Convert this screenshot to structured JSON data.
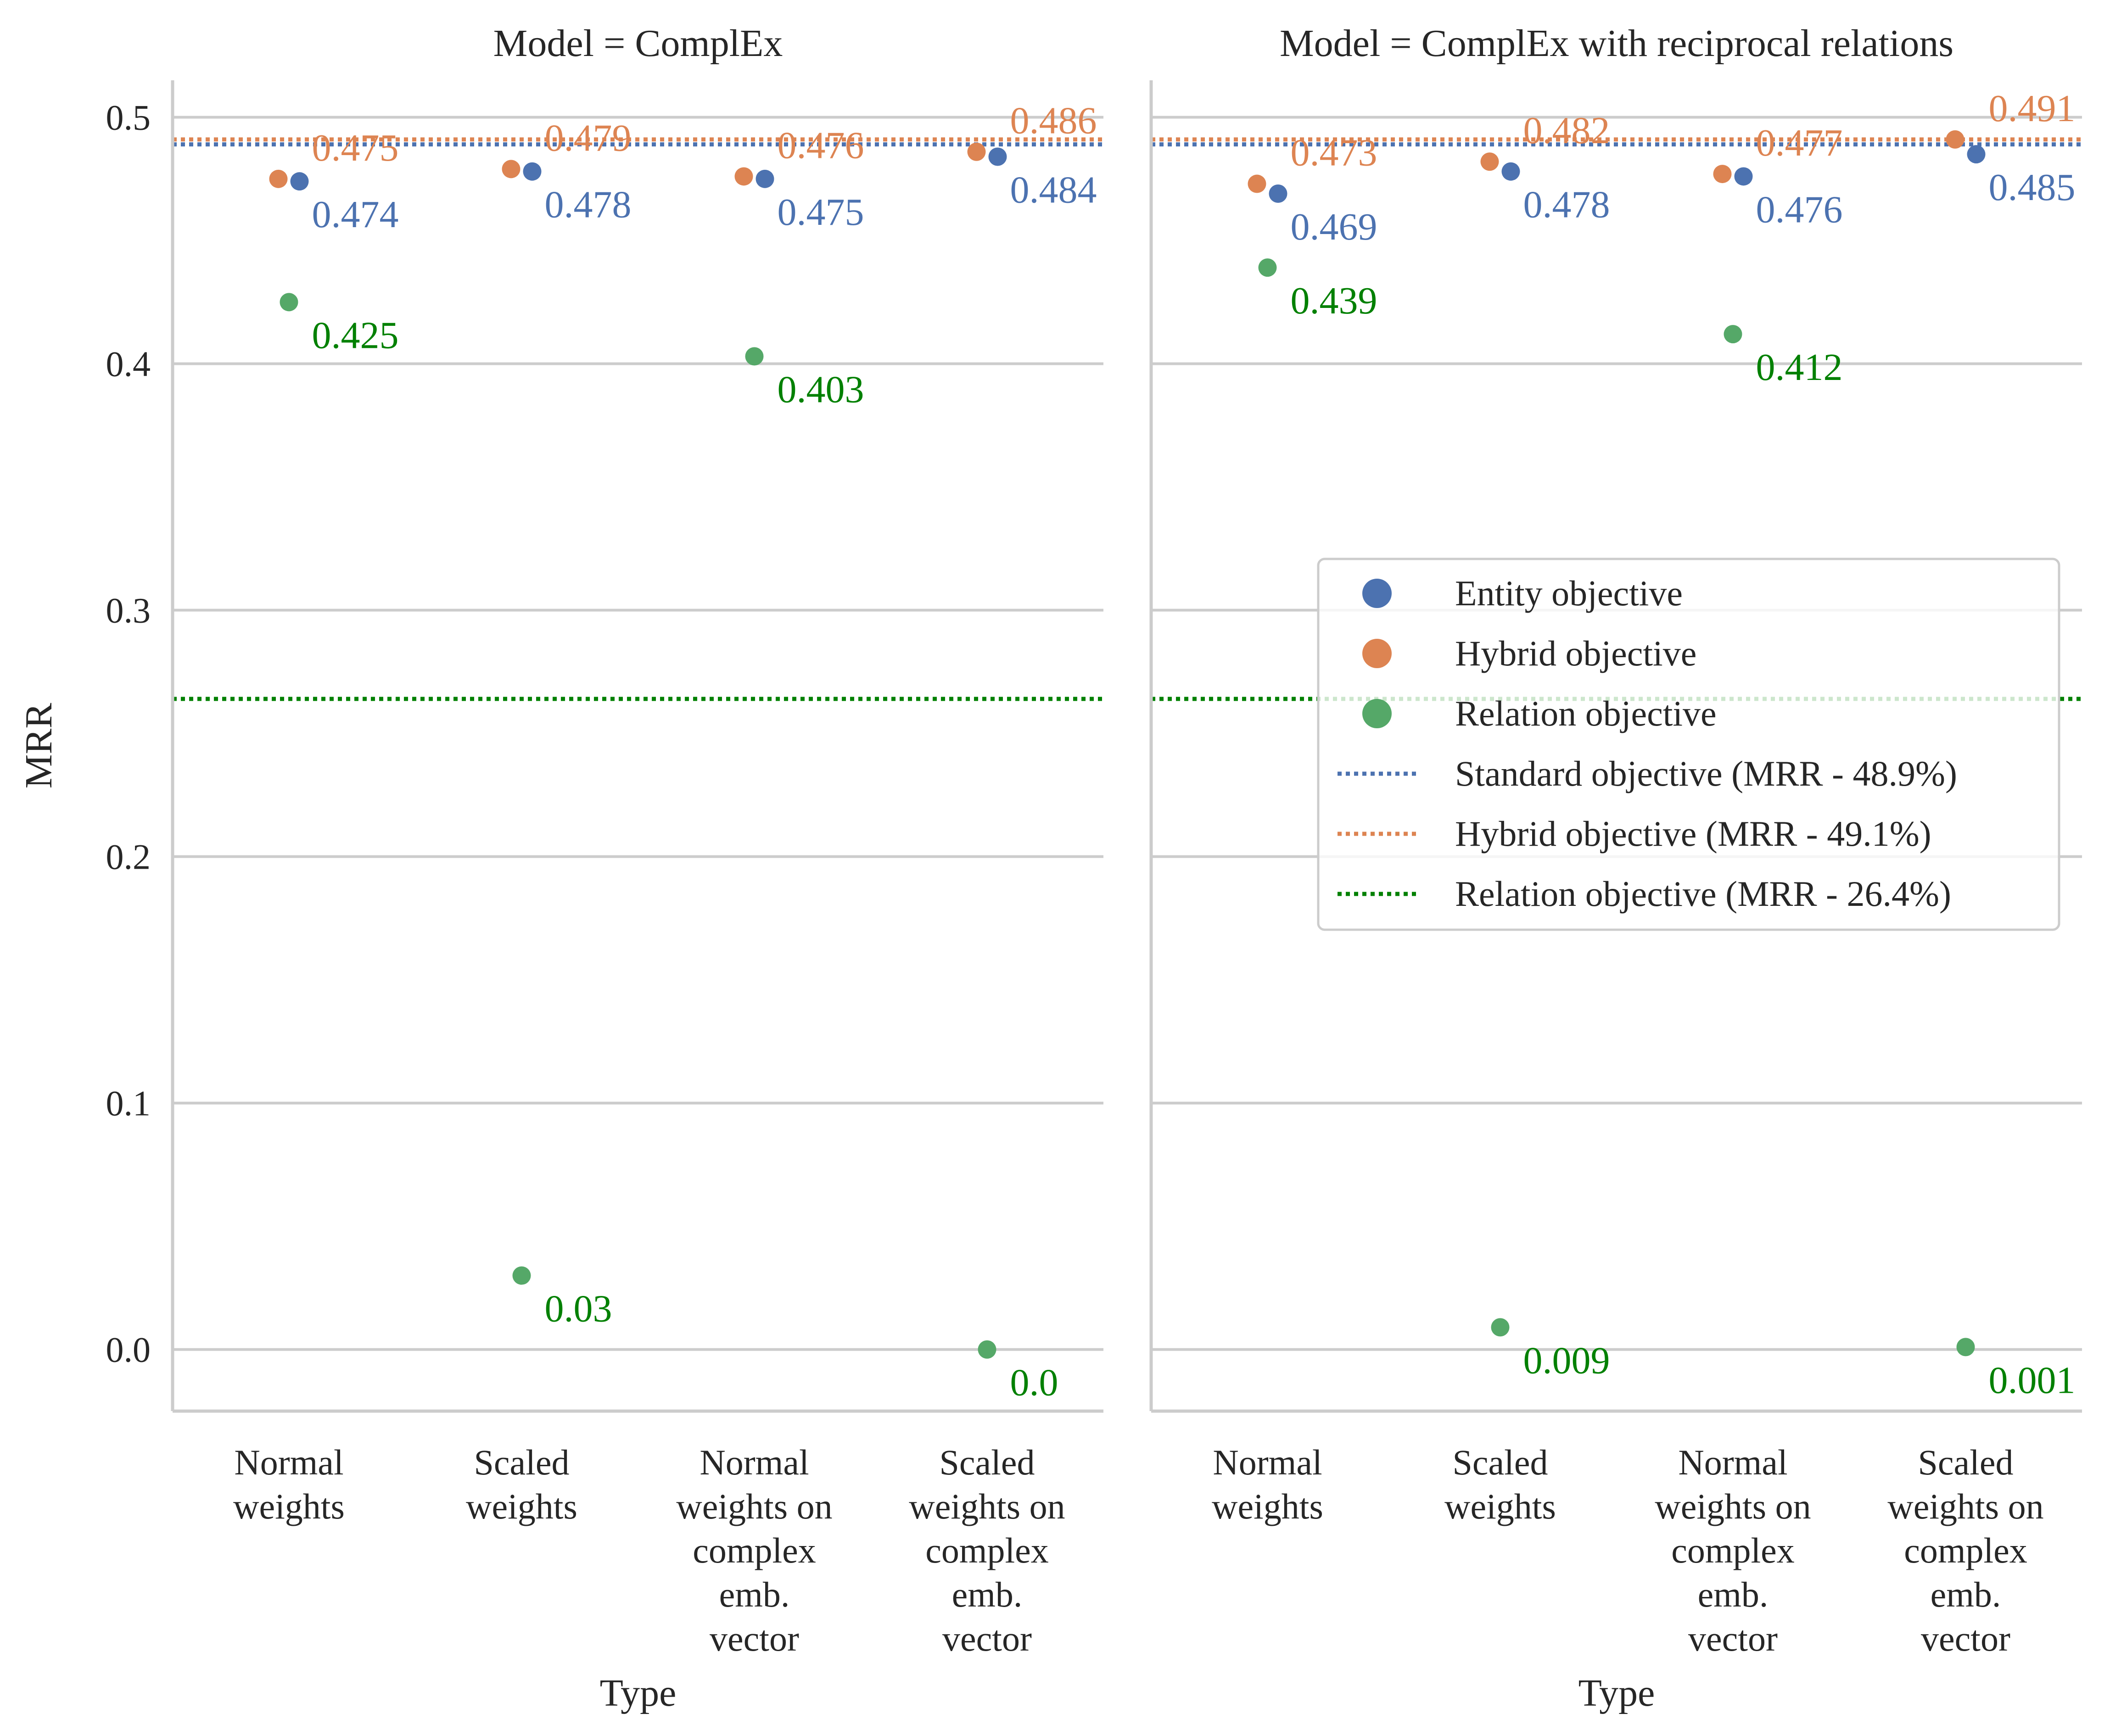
{
  "colors": {
    "entity": "#4c72b0",
    "hybrid": "#dd8452",
    "relation": "#55a868",
    "relation_label": "#008000",
    "relation_ref": "#008000"
  },
  "chart_data": [
    {
      "type": "scatter",
      "title": "Model = ComplEx",
      "xlabel": "Type",
      "ylabel": "MRR",
      "ylim": [
        -0.025,
        0.515
      ],
      "yticks": [
        "0.0",
        "0.1",
        "0.2",
        "0.3",
        "0.4",
        "0.5"
      ],
      "grid": "horizontal",
      "categories": [
        [
          "Normal",
          "weights"
        ],
        [
          "Scaled",
          "weights"
        ],
        [
          "Normal",
          "weights on",
          "complex",
          "emb.",
          "vector"
        ],
        [
          "Scaled",
          "weights on",
          "complex",
          "emb.",
          "vector"
        ]
      ],
      "series": [
        {
          "name": "Entity objective",
          "key": "entity",
          "values": [
            0.474,
            0.478,
            0.475,
            0.484
          ],
          "labels": [
            "0.474",
            "0.478",
            "0.475",
            "0.484"
          ]
        },
        {
          "name": "Hybrid objective",
          "key": "hybrid",
          "values": [
            0.475,
            0.479,
            0.476,
            0.486
          ],
          "labels": [
            "0.475",
            "0.479",
            "0.476",
            "0.486"
          ]
        },
        {
          "name": "Relation objective",
          "key": "relation",
          "values": [
            0.425,
            0.03,
            0.403,
            0.0
          ],
          "labels": [
            "0.425",
            "0.03",
            "0.403",
            "0.0"
          ]
        }
      ],
      "reference_lines": [
        {
          "name": "Standard objective (MRR - 48.9%)",
          "key": "entity",
          "value": 0.489
        },
        {
          "name": "Hybrid objective (MRR - 49.1%)",
          "key": "hybrid",
          "value": 0.491
        },
        {
          "name": "Relation objective (MRR - 26.4%)",
          "key": "relation_ref",
          "value": 0.264
        }
      ]
    },
    {
      "type": "scatter",
      "title": "Model = ComplEx with reciprocal relations",
      "xlabel": "Type",
      "ylabel": "",
      "ylim": [
        -0.025,
        0.515
      ],
      "grid": "horizontal",
      "categories": [
        [
          "Normal",
          "weights"
        ],
        [
          "Scaled",
          "weights"
        ],
        [
          "Normal",
          "weights on",
          "complex",
          "emb.",
          "vector"
        ],
        [
          "Scaled",
          "weights on",
          "complex",
          "emb.",
          "vector"
        ]
      ],
      "series": [
        {
          "name": "Entity objective",
          "key": "entity",
          "values": [
            0.469,
            0.478,
            0.476,
            0.485
          ],
          "labels": [
            "0.469",
            "0.478",
            "0.476",
            "0.485"
          ]
        },
        {
          "name": "Hybrid objective",
          "key": "hybrid",
          "values": [
            0.473,
            0.482,
            0.477,
            0.491
          ],
          "labels": [
            "0.473",
            "0.482",
            "0.477",
            "0.491"
          ]
        },
        {
          "name": "Relation objective",
          "key": "relation",
          "values": [
            0.439,
            0.009,
            0.412,
            0.001
          ],
          "labels": [
            "0.439",
            "0.009",
            "0.412",
            "0.001"
          ]
        }
      ],
      "reference_lines": [
        {
          "name": "Standard objective (MRR - 48.9%)",
          "key": "entity",
          "value": 0.489
        },
        {
          "name": "Hybrid objective (MRR - 49.1%)",
          "key": "hybrid",
          "value": 0.491
        },
        {
          "name": "Relation objective (MRR - 26.4%)",
          "key": "relation_ref",
          "value": 0.264
        }
      ]
    }
  ],
  "legend": {
    "placement": "center-right of second panel",
    "entries": [
      {
        "label": "Entity objective",
        "kind": "marker",
        "key": "entity"
      },
      {
        "label": "Hybrid objective",
        "kind": "marker",
        "key": "hybrid"
      },
      {
        "label": "Relation objective",
        "kind": "marker",
        "key": "relation"
      },
      {
        "label": "Standard objective (MRR - 48.9%)",
        "kind": "line",
        "key": "entity"
      },
      {
        "label": "Hybrid objective (MRR - 49.1%)",
        "kind": "line",
        "key": "hybrid"
      },
      {
        "label": "Relation objective (MRR - 26.4%)",
        "kind": "line",
        "key": "relation_ref"
      }
    ]
  }
}
